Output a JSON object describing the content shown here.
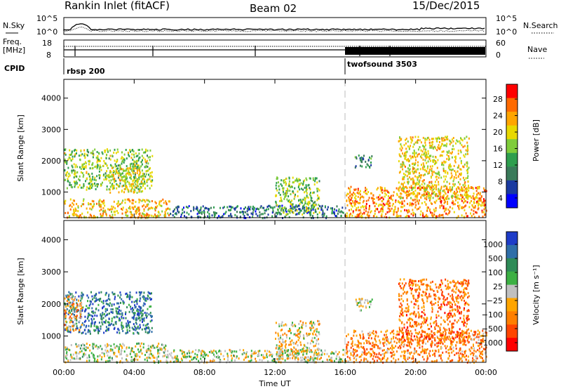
{
  "header": {
    "station": "Rankin Inlet (fitACF)",
    "beam": "Beam 02",
    "date": "15/Dec/2015"
  },
  "summary_panel": {
    "left_label": "N.Sky",
    "left_ticks": [
      "10^5",
      "10^0"
    ],
    "right_ticks": [
      "10^5",
      "10^0"
    ],
    "right_label": "N.Search",
    "right_line_style": "dotted"
  },
  "freq_panel": {
    "left_label_1": "Freq.",
    "left_label_2": "[MHz]",
    "left_ticks": [
      "18",
      "8"
    ],
    "right_ticks": [
      "60",
      "0"
    ],
    "right_label": "Nave",
    "right_line_style": "dotted"
  },
  "cpid_panel": {
    "label": "CPID",
    "program_1": "rbsp 200",
    "program_2": "twofsound 3503"
  },
  "power_panel": {
    "ylabel": "Slant Range [km]",
    "yticks": [
      "4000",
      "3000",
      "2000",
      "1000"
    ],
    "colorbar_label": "Power [dB]",
    "colorbar_ticks": [
      "28",
      "24",
      "20",
      "16",
      "12",
      "8",
      "4"
    ],
    "colorbar_colors": [
      "#ff0000",
      "#ff6a00",
      "#ffa500",
      "#e8d800",
      "#7fcc3a",
      "#2e9e4e",
      "#3a7a5a",
      "#1a3aa0",
      "#0000ff"
    ]
  },
  "velocity_panel": {
    "ylabel": "Slant Range [km]",
    "yticks": [
      "4000",
      "3000",
      "2000",
      "1000"
    ],
    "colorbar_label": "Velocity [m s⁻¹]",
    "colorbar_ticks": [
      "1000",
      "500",
      "100",
      "25",
      "−25",
      "−100",
      "−500",
      "−1000"
    ],
    "colorbar_colors": [
      "#1e3cc8",
      "#2f6ea8",
      "#2e8b57",
      "#3cb043",
      "#c0c0c0",
      "#ffa500",
      "#ff7f00",
      "#ff4500",
      "#ff0000"
    ]
  },
  "x_axis": {
    "label": "Time UT",
    "ticks": [
      "00:00",
      "04:00",
      "08:00",
      "12:00",
      "16:00",
      "20:00",
      "00:00"
    ]
  },
  "chart_data": [
    {
      "type": "heatmap",
      "title": "Power [dB]",
      "xlabel": "Time UT",
      "ylabel": "Slant Range [km]",
      "xlim": [
        0,
        24
      ],
      "ylim": [
        180,
        4600
      ],
      "zlim": [
        0,
        32
      ],
      "cells": [
        {
          "t0": 0.0,
          "t1": 5.0,
          "r0": 1100,
          "r1": 2400,
          "z": 16
        },
        {
          "t0": 2.5,
          "t1": 4.5,
          "r0": 1000,
          "r1": 1800,
          "z": 20
        },
        {
          "t0": 0.0,
          "t1": 6.0,
          "r0": 200,
          "r1": 800,
          "z": 22
        },
        {
          "t0": 6.0,
          "t1": 16.0,
          "r0": 200,
          "r1": 600,
          "z": 8
        },
        {
          "t0": 12.0,
          "t1": 14.5,
          "r0": 300,
          "r1": 1500,
          "z": 16
        },
        {
          "t0": 16.0,
          "t1": 24.0,
          "r0": 200,
          "r1": 1200,
          "z": 24
        },
        {
          "t0": 19.0,
          "t1": 23.0,
          "r0": 800,
          "r1": 2800,
          "z": 20
        },
        {
          "t0": 16.5,
          "t1": 17.5,
          "r0": 1800,
          "r1": 2200,
          "z": 10
        }
      ]
    },
    {
      "type": "heatmap",
      "title": "Velocity [m s⁻¹]",
      "xlabel": "Time UT",
      "ylabel": "Slant Range [km]",
      "xlim": [
        0,
        24
      ],
      "ylim": [
        180,
        4600
      ],
      "zlim": [
        -1000,
        1000
      ],
      "cells": [
        {
          "t0": 0.0,
          "t1": 5.0,
          "r0": 1100,
          "r1": 2400,
          "z": 600
        },
        {
          "t0": 0.0,
          "t1": 1.0,
          "r0": 1200,
          "r1": 2300,
          "z": -300
        },
        {
          "t0": 0.0,
          "t1": 6.0,
          "r0": 200,
          "r1": 800,
          "z": 50
        },
        {
          "t0": 6.0,
          "t1": 16.0,
          "r0": 200,
          "r1": 600,
          "z": 10
        },
        {
          "t0": 12.0,
          "t1": 14.5,
          "r0": 300,
          "r1": 1500,
          "z": -150
        },
        {
          "t0": 16.0,
          "t1": 24.0,
          "r0": 200,
          "r1": 1200,
          "z": -400
        },
        {
          "t0": 19.0,
          "t1": 23.0,
          "r0": 800,
          "r1": 2800,
          "z": -500
        },
        {
          "t0": 16.5,
          "t1": 17.5,
          "r0": 1800,
          "r1": 2200,
          "z": 80
        }
      ]
    }
  ]
}
